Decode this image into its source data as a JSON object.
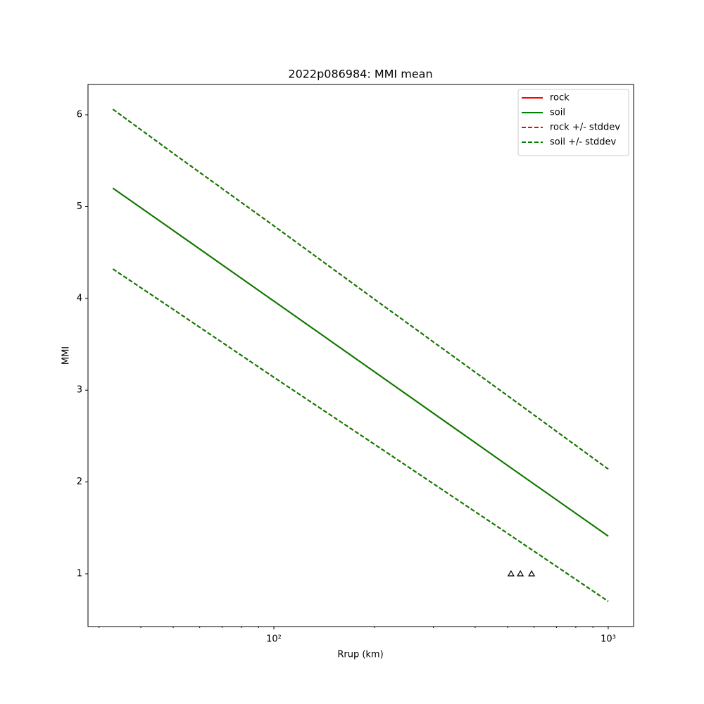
{
  "chart_data": {
    "type": "line",
    "title": "2022p086984: MMI mean",
    "x_label": "Rrup (km)",
    "y_label": "MMI",
    "x_scale": "log",
    "x": [
      33,
      50,
      100,
      200,
      500,
      1000
    ],
    "series": [
      {
        "name": "rock",
        "color": "#ff0000",
        "dashed": false,
        "values": [
          5.2,
          4.74,
          3.97,
          3.2,
          2.18,
          1.41
        ]
      },
      {
        "name": "soil",
        "color": "#008000",
        "dashed": false,
        "values": [
          5.2,
          4.74,
          3.97,
          3.2,
          2.18,
          1.41
        ]
      },
      {
        "name": "rock +/- stddev",
        "color": "#ff0000",
        "dashed": true,
        "upper": [
          6.06,
          5.58,
          4.79,
          3.99,
          2.94,
          2.14
        ],
        "lower": [
          4.32,
          3.88,
          3.14,
          2.41,
          1.44,
          0.7
        ]
      },
      {
        "name": "soil +/- stddev",
        "color": "#008000",
        "dashed": true,
        "upper": [
          6.06,
          5.58,
          4.79,
          3.99,
          2.94,
          2.14
        ],
        "lower": [
          4.32,
          3.88,
          3.14,
          2.41,
          1.44,
          0.7
        ]
      }
    ],
    "points": {
      "x": [
        512,
        546,
        590
      ],
      "y": [
        1,
        1,
        1
      ],
      "color": "#000000"
    },
    "xlim": [
      27.8,
      1191
    ],
    "ylim": [
      0.425,
      6.33
    ],
    "xticks": [
      {
        "value": 100,
        "label": "10²"
      },
      {
        "value": 1000,
        "label": "10³"
      }
    ],
    "xminor_ticks": [
      30,
      40,
      50,
      60,
      70,
      80,
      90,
      200,
      300,
      400,
      500,
      600,
      700,
      800,
      900
    ],
    "yticks": [
      1,
      2,
      3,
      4,
      5,
      6
    ],
    "legend": "upper right"
  }
}
